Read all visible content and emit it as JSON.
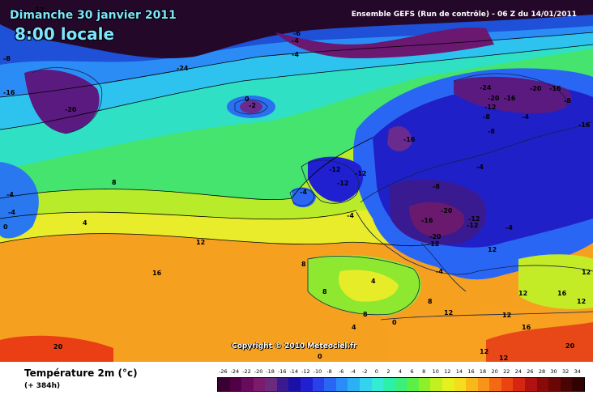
{
  "header": {
    "date": "Dimanche 30 janvier 2011",
    "time": "8:00 locale",
    "model": "Ensemble GEFS (Run de contrôle)  -  06 Z du 14/01/2011"
  },
  "copyright": "Copyright © 2010 Meteociel.fr",
  "legend": {
    "title": "Température 2m (°c)",
    "subtitle": "(+ 384h)",
    "ticks": [
      "-26",
      "-24",
      "-22",
      "-20",
      "-18",
      "-16",
      "-14",
      "-12",
      "-10",
      "-8",
      "-6",
      "-4",
      "-2",
      "0",
      "2",
      "4",
      "6",
      "8",
      "10",
      "12",
      "14",
      "16",
      "18",
      "20",
      "22",
      "24",
      "26",
      "28",
      "30",
      "32",
      "34"
    ],
    "colors": [
      "#3a0030",
      "#520046",
      "#6a0a5c",
      "#7c1a6c",
      "#6a2a7e",
      "#3a1a90",
      "#1a10a8",
      "#2020d0",
      "#2a40e8",
      "#2a66f4",
      "#2a8cf6",
      "#2cb0f4",
      "#34d2ee",
      "#34ecd4",
      "#2cf0a8",
      "#3af07a",
      "#5cf046",
      "#8ef02a",
      "#c0f020",
      "#e6f01e",
      "#f6dc1c",
      "#f8b81a",
      "#f89418",
      "#f46a14",
      "#ea4412",
      "#d42610",
      "#b01212",
      "#8a0a0a",
      "#6a0606",
      "#4a0404",
      "#300202"
    ]
  },
  "map_labels": [
    "-20",
    "-16",
    "-12",
    "-8",
    "-4",
    "4",
    "8",
    "12",
    "16",
    "20",
    "0",
    "-24",
    "-2",
    "-12",
    "-4",
    "0",
    "-4",
    "-4",
    "-6",
    "-12",
    "-12",
    "-4",
    "-16",
    "-20",
    "-12",
    "-24",
    "-20",
    "-16",
    "-8",
    "-16",
    "-4",
    "-20",
    "-12",
    "-8",
    "-16",
    "-12",
    "-4",
    "-8",
    "-20",
    "-16",
    "-4",
    "8",
    "12",
    "16",
    "20",
    "-4",
    "-12",
    "-4",
    "12",
    "12",
    "8",
    "4",
    "8",
    "12",
    "12",
    "16",
    "8",
    "0",
    "0",
    "12",
    "12",
    "4",
    "12",
    "-8"
  ],
  "colors": {
    "ocean_blue": "#1e64e6",
    "green": "#48e070",
    "yellow": "#e6ec28",
    "orange": "#f89a18",
    "purple": "#5a1070"
  }
}
